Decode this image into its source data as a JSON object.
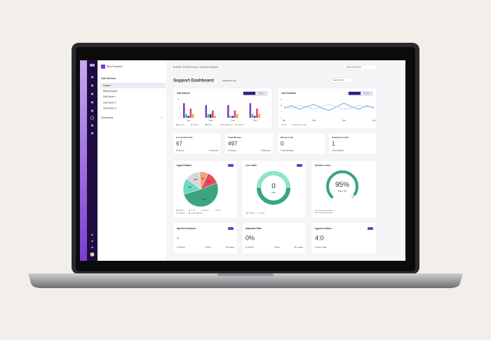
{
  "sidebar": {
    "location": "San Francisco",
    "section": "Call Centers",
    "items": [
      "Support",
      "Billing Support",
      "Call Center 1",
      "Call Center 2",
      "Call Center 3"
    ],
    "scorecards": "Scorecards"
  },
  "header": {
    "breadcrumb": "My Realm / My Realm Support / Call Center Dashboard",
    "search": "Search Ideal Center",
    "title": "Support Dashboard",
    "updated": "Updated 2s ago",
    "range": "Last 4 Hours"
  },
  "call_volume": {
    "type": "bar",
    "title": "Call Volume",
    "tabs": [
      "Inbound",
      "Outbound"
    ],
    "categories": [
      "9am",
      "10am",
      "11am",
      "12pm"
    ],
    "ylim": [
      0,
      10
    ],
    "yticks": [
      0,
      5,
      10
    ],
    "series": [
      {
        "name": "Answered",
        "color": "#7b3fc4",
        "values": [
          8,
          7,
          7,
          8
        ]
      },
      {
        "name": "Voicemail",
        "color": "#3fb8a8",
        "values": [
          2,
          2,
          1,
          2
        ]
      },
      {
        "name": "Missed",
        "color": "#2a2f6e",
        "values": [
          1,
          2,
          1,
          1
        ]
      },
      {
        "name": "Short Abandoned",
        "color": "#e0457b",
        "values": [
          5,
          4,
          4,
          5
        ]
      },
      {
        "name": "Forwarded",
        "color": "#f0a030",
        "values": [
          2,
          1,
          2,
          2
        ]
      }
    ]
  },
  "call_duration": {
    "type": "line",
    "title": "Call Duration",
    "tabs": [
      "Inbound",
      "Outbound"
    ],
    "categories": [
      "9am",
      null,
      null,
      null,
      "10am",
      null,
      null,
      null,
      "11am",
      null,
      null,
      null,
      "12pm"
    ],
    "ylim": [
      0,
      15
    ],
    "yticks": [
      0,
      5,
      10,
      15
    ],
    "series": [
      {
        "name": "Today",
        "color": "#3a8fd6",
        "values": [
          8,
          10,
          7,
          9,
          11,
          8,
          6,
          9,
          12,
          9,
          7,
          10,
          8
        ]
      },
      {
        "name": "Average (Last 7 Days)",
        "color": "#a9c9ec",
        "values": [
          9,
          8,
          10,
          9,
          7,
          9,
          11,
          9,
          7,
          8,
          10,
          9,
          9
        ]
      }
    ]
  },
  "stats": [
    {
      "title": "Connected Calls",
      "value": "67",
      "left": "56 Inbound",
      "right": "11 Outbound"
    },
    {
      "title": "Total Minutes",
      "value": "497",
      "left": "26 Inbound",
      "right": "23 Outbound"
    },
    {
      "title": "Missed Calls",
      "value": "0",
      "left": "0 Total Voicemails"
    },
    {
      "title": "Abandoned Calls",
      "value": "1",
      "left": "0 Short Abandon"
    }
  ],
  "agent_status": {
    "type": "pie",
    "title": "Agent Status",
    "badge": "LIVE",
    "values": [
      12,
      51,
      15,
      14,
      8
    ],
    "value_labels": [
      "12%",
      "51%",
      "15%",
      "14%",
      "8%"
    ],
    "colors": [
      "#e8495e",
      "#3aa57e",
      "#6fd9c0",
      "#d8d8dc",
      "#f5a37a"
    ],
    "legend": [
      "Available",
      "On Call",
      "Wrap-up",
      "Off Duty",
      "Unavailable",
      "Technical Difficulties"
    ]
  },
  "live_calls": {
    "title": "Live Calls",
    "badge": "LIVE",
    "value": "0",
    "unit": "calls",
    "legend": [
      "In Progress",
      "In Queue"
    ]
  },
  "service_level": {
    "type": "gauge",
    "title": "Service Level",
    "value": 95,
    "value_label": "95%",
    "ylim": [
      0,
      100
    ],
    "target": "Target: 90%",
    "note": "% of calls answered within 30s of entering the Queue"
  },
  "metrics": [
    {
      "title": "Speed to Answer",
      "badge": "LIVE",
      "value": "-",
      "left": "0s Shortest",
      "mid": "15s Avg",
      "right": "30s Longest"
    },
    {
      "title": "Abandon Rate",
      "value": "0%",
      "left": "0s Shortest",
      "mid": "14s Avg",
      "right": "30s Longest"
    },
    {
      "title": "Agents Callers",
      "badge": "LIVE",
      "value": "4:0",
      "left": "0 Queue Length"
    }
  ]
}
